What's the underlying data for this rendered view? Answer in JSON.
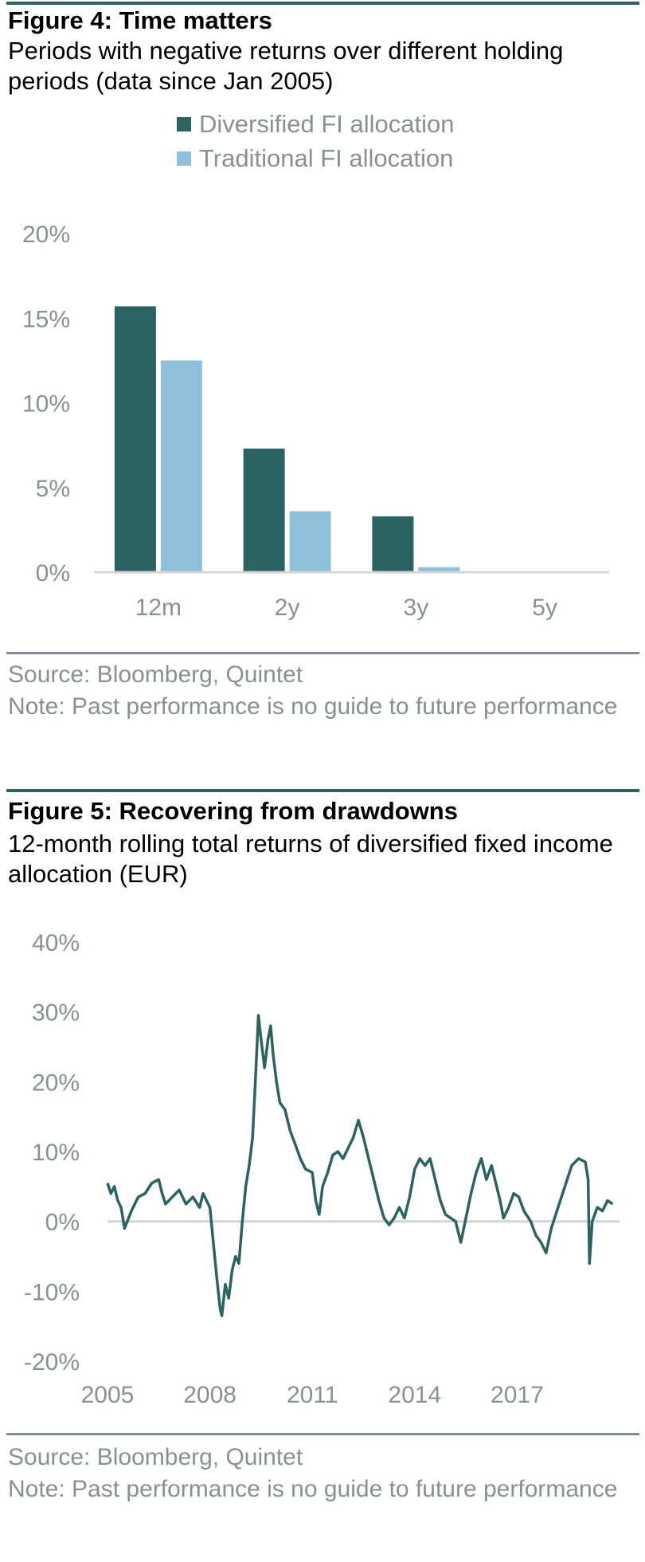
{
  "fig4": {
    "title": "Figure 4: Time matters",
    "subtitle": "Periods with negative returns over different holding periods (data since Jan 2005)",
    "source": "Source: Bloomberg, Quintet",
    "note": "Note: Past performance is no guide to future performance"
  },
  "fig5": {
    "title": "Figure 5: Recovering from drawdowns",
    "subtitle": "12-month rolling total returns of diversified fixed income allocation (EUR)",
    "source": "Source: Bloomberg, Quintet",
    "note": "Note: Past performance is no guide to future performance"
  },
  "colors": {
    "dark_teal": "#2b6262",
    "light_blue": "#8fc0da",
    "axis_grey": "#d6d6d6",
    "text_grey": "#8a8f93"
  },
  "chart_data": [
    {
      "type": "bar",
      "categories": [
        "12m",
        "2y",
        "3y",
        "5y"
      ],
      "series": [
        {
          "name": "Diversified FI allocation",
          "values": [
            15.7,
            7.3,
            3.3,
            0.0
          ]
        },
        {
          "name": "Traditional FI allocation",
          "values": [
            12.5,
            3.6,
            0.3,
            0.0
          ]
        }
      ],
      "yticks": [
        "0%",
        "5%",
        "10%",
        "15%",
        "20%"
      ],
      "ylim": [
        0,
        20
      ],
      "legend": "top",
      "grid": false
    },
    {
      "type": "line",
      "xticks": [
        "2005",
        "2008",
        "2011",
        "2014",
        "2017"
      ],
      "yticks": [
        "-20%",
        "-10%",
        "0%",
        "10%",
        "20%",
        "30%",
        "40%"
      ],
      "xlim": [
        2005,
        2020
      ],
      "ylim": [
        -20,
        40
      ],
      "grid": false,
      "series": [
        {
          "points": [
            [
              2005.0,
              5.5
            ],
            [
              2005.1,
              4.0
            ],
            [
              2005.2,
              5.0
            ],
            [
              2005.3,
              3.0
            ],
            [
              2005.4,
              2.0
            ],
            [
              2005.5,
              -1.0
            ],
            [
              2005.7,
              1.5
            ],
            [
              2005.9,
              3.5
            ],
            [
              2006.1,
              4.0
            ],
            [
              2006.3,
              5.5
            ],
            [
              2006.5,
              6.0
            ],
            [
              2006.6,
              4.0
            ],
            [
              2006.7,
              2.5
            ],
            [
              2006.9,
              3.5
            ],
            [
              2007.1,
              4.5
            ],
            [
              2007.3,
              2.5
            ],
            [
              2007.5,
              3.5
            ],
            [
              2007.7,
              2.0
            ],
            [
              2007.8,
              4.0
            ],
            [
              2007.9,
              3.0
            ],
            [
              2008.0,
              2.0
            ],
            [
              2008.1,
              -3.0
            ],
            [
              2008.2,
              -8.0
            ],
            [
              2008.3,
              -12.5
            ],
            [
              2008.35,
              -13.5
            ],
            [
              2008.45,
              -9.0
            ],
            [
              2008.55,
              -11.0
            ],
            [
              2008.65,
              -7.0
            ],
            [
              2008.75,
              -5.0
            ],
            [
              2008.85,
              -6.0
            ],
            [
              2008.95,
              0.0
            ],
            [
              2009.05,
              5.0
            ],
            [
              2009.15,
              8.0
            ],
            [
              2009.25,
              12.0
            ],
            [
              2009.35,
              22.0
            ],
            [
              2009.42,
              29.5
            ],
            [
              2009.5,
              26.0
            ],
            [
              2009.6,
              22.0
            ],
            [
              2009.7,
              26.0
            ],
            [
              2009.78,
              28.0
            ],
            [
              2009.85,
              24.0
            ],
            [
              2009.95,
              20.0
            ],
            [
              2010.05,
              17.0
            ],
            [
              2010.2,
              16.0
            ],
            [
              2010.35,
              13.0
            ],
            [
              2010.5,
              11.0
            ],
            [
              2010.65,
              9.0
            ],
            [
              2010.8,
              7.5
            ],
            [
              2011.0,
              7.0
            ],
            [
              2011.1,
              3.0
            ],
            [
              2011.2,
              1.0
            ],
            [
              2011.3,
              5.0
            ],
            [
              2011.45,
              7.0
            ],
            [
              2011.6,
              9.5
            ],
            [
              2011.75,
              10.0
            ],
            [
              2011.9,
              9.0
            ],
            [
              2012.05,
              10.5
            ],
            [
              2012.2,
              12.0
            ],
            [
              2012.35,
              14.5
            ],
            [
              2012.5,
              12.0
            ],
            [
              2012.65,
              9.0
            ],
            [
              2012.8,
              6.0
            ],
            [
              2012.95,
              3.0
            ],
            [
              2013.1,
              0.5
            ],
            [
              2013.25,
              -0.5
            ],
            [
              2013.4,
              0.5
            ],
            [
              2013.55,
              2.0
            ],
            [
              2013.7,
              0.5
            ],
            [
              2013.85,
              3.5
            ],
            [
              2014.0,
              7.5
            ],
            [
              2014.15,
              9.0
            ],
            [
              2014.3,
              8.0
            ],
            [
              2014.45,
              9.0
            ],
            [
              2014.6,
              6.0
            ],
            [
              2014.75,
              3.0
            ],
            [
              2014.9,
              1.0
            ],
            [
              2015.05,
              0.5
            ],
            [
              2015.2,
              0.0
            ],
            [
              2015.35,
              -3.0
            ],
            [
              2015.5,
              0.5
            ],
            [
              2015.65,
              4.0
            ],
            [
              2015.8,
              7.0
            ],
            [
              2015.95,
              9.0
            ],
            [
              2016.1,
              6.0
            ],
            [
              2016.25,
              8.0
            ],
            [
              2016.4,
              5.0
            ],
            [
              2016.5,
              3.0
            ],
            [
              2016.6,
              0.5
            ],
            [
              2016.75,
              2.0
            ],
            [
              2016.9,
              4.0
            ],
            [
              2017.05,
              3.5
            ],
            [
              2017.2,
              1.5
            ],
            [
              2017.4,
              0.0
            ],
            [
              2017.55,
              -2.0
            ],
            [
              2017.7,
              -3.0
            ],
            [
              2017.85,
              -4.5
            ],
            [
              2018.0,
              -1.0
            ],
            [
              2018.2,
              2.0
            ],
            [
              2018.4,
              5.0
            ],
            [
              2018.6,
              8.0
            ],
            [
              2018.8,
              9.0
            ],
            [
              2019.0,
              8.5
            ],
            [
              2019.08,
              6.0
            ],
            [
              2019.12,
              -6.0
            ],
            [
              2019.2,
              0.0
            ],
            [
              2019.35,
              2.0
            ],
            [
              2019.5,
              1.5
            ],
            [
              2019.65,
              3.0
            ],
            [
              2019.8,
              2.5
            ]
          ]
        }
      ]
    }
  ]
}
